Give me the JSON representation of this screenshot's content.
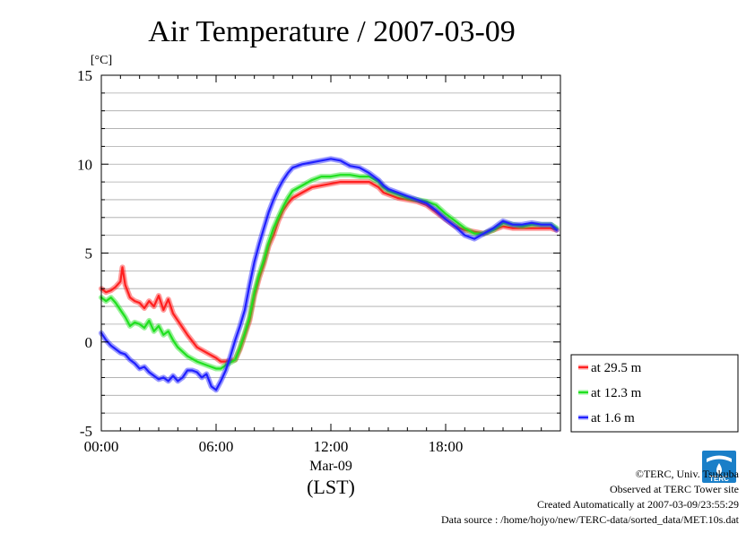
{
  "chart_data": {
    "type": "line",
    "title": "Air Temperature / 2007-03-09",
    "ylabel": "[°C]",
    "xlabel": "(LST)",
    "date_label": "Mar-09",
    "xlim": [
      0,
      24
    ],
    "ylim": [
      -5,
      15
    ],
    "x_ticks": [
      {
        "x": 0,
        "label": "00:00"
      },
      {
        "x": 6,
        "label": "06:00"
      },
      {
        "x": 12,
        "label": "12:00"
      },
      {
        "x": 18,
        "label": "18:00"
      }
    ],
    "y_ticks": [
      {
        "y": 15,
        "label": "15"
      },
      {
        "y": 10,
        "label": "10"
      },
      {
        "y": 5,
        "label": "5"
      },
      {
        "y": 0,
        "label": "0"
      },
      {
        "y": -5,
        "label": "-5"
      }
    ],
    "grid": true,
    "legend": {
      "position": "right"
    },
    "series": [
      {
        "name": "at 29.5 m",
        "color": "#ff2020",
        "x": [
          0,
          0.25,
          0.5,
          0.75,
          1,
          1.1,
          1.25,
          1.5,
          1.75,
          2,
          2.25,
          2.5,
          2.75,
          3,
          3.25,
          3.5,
          3.75,
          4,
          4.5,
          5,
          5.5,
          6,
          6.25,
          6.5,
          7,
          7.25,
          7.5,
          7.75,
          8,
          8.25,
          8.5,
          8.75,
          9,
          9.25,
          9.5,
          9.75,
          10,
          10.5,
          11,
          11.5,
          12,
          12.5,
          13,
          13.5,
          14,
          14.5,
          14.75,
          15,
          15.5,
          16,
          16.5,
          17,
          17.5,
          18,
          18.5,
          19,
          19.5,
          20,
          20.5,
          21,
          21.5,
          22,
          22.5,
          23,
          23.5,
          23.8
        ],
        "y": [
          3.0,
          2.8,
          2.9,
          3.1,
          3.4,
          4.2,
          3.2,
          2.5,
          2.3,
          2.2,
          1.9,
          2.3,
          2.0,
          2.6,
          1.8,
          2.4,
          1.6,
          1.2,
          0.4,
          -0.3,
          -0.6,
          -0.9,
          -1.1,
          -1.1,
          -1.0,
          -0.4,
          0.4,
          1.2,
          2.6,
          3.6,
          4.4,
          5.4,
          6.0,
          6.8,
          7.4,
          7.8,
          8.1,
          8.4,
          8.7,
          8.8,
          8.9,
          9.0,
          9.0,
          9.0,
          9.0,
          8.7,
          8.4,
          8.3,
          8.1,
          8.0,
          7.9,
          7.7,
          7.3,
          6.9,
          6.5,
          6.3,
          6.2,
          6.1,
          6.3,
          6.5,
          6.4,
          6.4,
          6.4,
          6.4,
          6.4,
          6.3
        ]
      },
      {
        "name": "at 12.3 m",
        "color": "#20e020",
        "x": [
          0,
          0.25,
          0.5,
          0.75,
          1,
          1.25,
          1.5,
          1.75,
          2,
          2.25,
          2.5,
          2.75,
          3,
          3.25,
          3.5,
          3.75,
          4,
          4.5,
          5,
          5.5,
          6,
          6.25,
          6.5,
          7,
          7.25,
          7.5,
          7.75,
          8,
          8.25,
          8.5,
          8.75,
          9,
          9.25,
          9.5,
          9.75,
          10,
          10.5,
          11,
          11.5,
          12,
          12.5,
          13,
          13.5,
          14,
          14.5,
          14.75,
          15,
          15.5,
          16,
          16.5,
          17,
          17.5,
          18,
          18.5,
          19,
          19.5,
          20,
          20.5,
          21,
          21.5,
          22,
          22.5,
          23,
          23.5,
          23.8
        ],
        "y": [
          2.5,
          2.3,
          2.5,
          2.2,
          1.8,
          1.4,
          0.9,
          1.1,
          1.0,
          0.8,
          1.2,
          0.6,
          0.9,
          0.4,
          0.6,
          0.1,
          -0.3,
          -0.8,
          -1.1,
          -1.3,
          -1.5,
          -1.5,
          -1.3,
          -1.0,
          -0.3,
          0.5,
          1.4,
          2.8,
          3.8,
          4.6,
          5.6,
          6.4,
          7.0,
          7.6,
          8.1,
          8.5,
          8.8,
          9.1,
          9.3,
          9.3,
          9.4,
          9.4,
          9.3,
          9.3,
          9.0,
          8.7,
          8.5,
          8.3,
          8.1,
          8.0,
          7.9,
          7.7,
          7.2,
          6.8,
          6.4,
          6.1,
          6.1,
          6.3,
          6.7,
          6.6,
          6.5,
          6.6,
          6.6,
          6.6,
          6.4
        ]
      },
      {
        "name": "at 1.6 m",
        "color": "#2020ff",
        "x": [
          0,
          0.25,
          0.5,
          0.75,
          1,
          1.25,
          1.5,
          1.75,
          2,
          2.25,
          2.5,
          2.75,
          3,
          3.25,
          3.5,
          3.75,
          4,
          4.25,
          4.5,
          4.75,
          5,
          5.25,
          5.5,
          5.75,
          6,
          6.25,
          6.5,
          6.75,
          7,
          7.25,
          7.5,
          7.75,
          8,
          8.25,
          8.5,
          8.75,
          9,
          9.25,
          9.5,
          9.75,
          10,
          10.5,
          11,
          11.5,
          12,
          12.5,
          13,
          13.5,
          14,
          14.5,
          14.75,
          15,
          15.5,
          16,
          16.5,
          17,
          17.5,
          18,
          18.5,
          19,
          19.5,
          20,
          20.5,
          21,
          21.5,
          22,
          22.5,
          23,
          23.5,
          23.8
        ],
        "y": [
          0.5,
          0.1,
          -0.2,
          -0.4,
          -0.6,
          -0.7,
          -1.0,
          -1.2,
          -1.5,
          -1.4,
          -1.7,
          -1.9,
          -2.1,
          -2.0,
          -2.2,
          -1.9,
          -2.2,
          -2.0,
          -1.6,
          -1.6,
          -1.7,
          -2.0,
          -1.8,
          -2.5,
          -2.7,
          -2.2,
          -1.6,
          -0.8,
          0.1,
          0.9,
          1.8,
          3.2,
          4.5,
          5.5,
          6.4,
          7.3,
          8.0,
          8.6,
          9.1,
          9.5,
          9.8,
          10.0,
          10.1,
          10.2,
          10.3,
          10.2,
          9.9,
          9.8,
          9.5,
          9.1,
          8.8,
          8.6,
          8.4,
          8.2,
          8.0,
          7.8,
          7.4,
          6.9,
          6.5,
          6.0,
          5.8,
          6.1,
          6.4,
          6.8,
          6.6,
          6.6,
          6.7,
          6.6,
          6.6,
          6.3
        ]
      }
    ]
  },
  "logo_text": "TERC",
  "footer": {
    "copyright": "©TERC, Univ. Tsukuba",
    "observed": "Observed at TERC Tower site",
    "created": "Created Automatically at 2007-03-09/23:55:29",
    "source": "Data source : /home/hojyo/new/TERC-data/sorted_data/MET.10s.dat"
  }
}
